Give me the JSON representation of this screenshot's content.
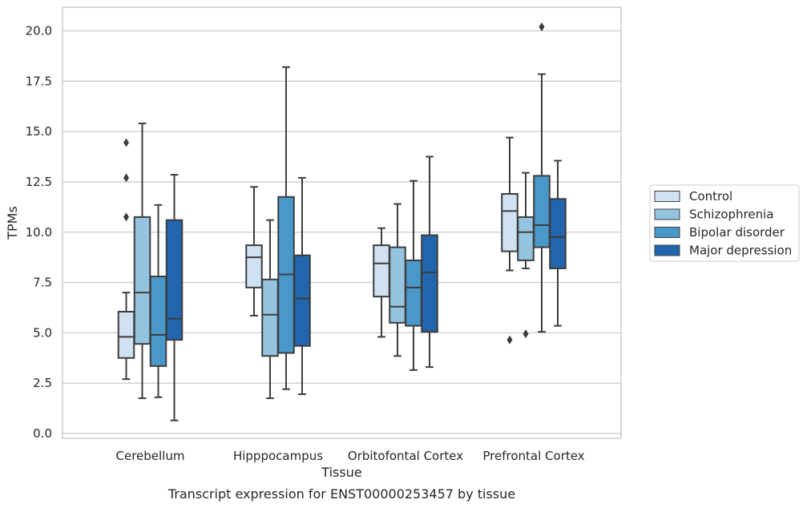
{
  "colors": {
    "background": "#ffffff",
    "grid": "#cccccc",
    "frame": "#cccccc",
    "box_edge": "#3d3d3d"
  },
  "chart_data": {
    "type": "box",
    "title": "",
    "caption": "Transcript expression for ENST00000253457 by tissue",
    "xlabel": "Tissue",
    "ylabel": "TPMs",
    "ylim": [
      -0.4,
      21.3
    ],
    "yticks": [
      "0.0",
      "2.5",
      "5.0",
      "7.5",
      "10.0",
      "12.5",
      "15.0",
      "17.5",
      "20.0"
    ],
    "grid": "horizontal",
    "legend_position": "right",
    "categories": [
      "Cerebellum",
      "Hipppocampus",
      "Orbitofontal Cortex",
      "Prefrontal Cortex"
    ],
    "series": [
      {
        "name": "Control",
        "color": "#d0e1f2",
        "boxes": [
          {
            "whisker_low": 2.7,
            "q1": 3.75,
            "median": 4.8,
            "q3": 6.05,
            "whisker_high": 7.0,
            "outliers": [
              10.75,
              12.7,
              14.45
            ]
          },
          {
            "whisker_low": 5.85,
            "q1": 7.25,
            "median": 8.75,
            "q3": 9.35,
            "whisker_high": 12.25,
            "outliers": []
          },
          {
            "whisker_low": 4.8,
            "q1": 6.8,
            "median": 8.45,
            "q3": 9.35,
            "whisker_high": 10.2,
            "outliers": []
          },
          {
            "whisker_low": 8.1,
            "q1": 9.05,
            "median": 11.05,
            "q3": 11.9,
            "whisker_high": 14.7,
            "outliers": [
              4.65
            ]
          }
        ]
      },
      {
        "name": "Schizophrenia",
        "color": "#94c4df",
        "boxes": [
          {
            "whisker_low": 1.75,
            "q1": 4.45,
            "median": 7.0,
            "q3": 10.75,
            "whisker_high": 15.4,
            "outliers": []
          },
          {
            "whisker_low": 1.75,
            "q1": 3.85,
            "median": 5.9,
            "q3": 7.65,
            "whisker_high": 10.6,
            "outliers": []
          },
          {
            "whisker_low": 3.85,
            "q1": 5.5,
            "median": 6.3,
            "q3": 9.25,
            "whisker_high": 11.4,
            "outliers": []
          },
          {
            "whisker_low": 8.2,
            "q1": 8.6,
            "median": 10.0,
            "q3": 10.75,
            "whisker_high": 12.95,
            "outliers": [
              4.95
            ]
          }
        ]
      },
      {
        "name": "Bipolar disorder",
        "color": "#4a98c9",
        "boxes": [
          {
            "whisker_low": 1.8,
            "q1": 3.35,
            "median": 4.9,
            "q3": 7.8,
            "whisker_high": 11.35,
            "outliers": []
          },
          {
            "whisker_low": 2.2,
            "q1": 4.0,
            "median": 7.9,
            "q3": 11.75,
            "whisker_high": 18.2,
            "outliers": []
          },
          {
            "whisker_low": 3.15,
            "q1": 5.35,
            "median": 7.25,
            "q3": 8.6,
            "whisker_high": 12.55,
            "outliers": []
          },
          {
            "whisker_low": 5.05,
            "q1": 9.25,
            "median": 10.35,
            "q3": 12.8,
            "whisker_high": 17.85,
            "outliers": [
              20.2
            ]
          }
        ]
      },
      {
        "name": "Major depression",
        "color": "#2166ac",
        "boxes": [
          {
            "whisker_low": 0.65,
            "q1": 4.65,
            "median": 5.7,
            "q3": 10.6,
            "whisker_high": 12.85,
            "outliers": []
          },
          {
            "whisker_low": 1.95,
            "q1": 4.35,
            "median": 6.7,
            "q3": 8.85,
            "whisker_high": 12.7,
            "outliers": []
          },
          {
            "whisker_low": 3.3,
            "q1": 5.05,
            "median": 8.0,
            "q3": 9.85,
            "whisker_high": 13.75,
            "outliers": []
          },
          {
            "whisker_low": 5.35,
            "q1": 8.2,
            "median": 9.75,
            "q3": 11.65,
            "whisker_high": 13.55,
            "outliers": []
          }
        ]
      }
    ]
  }
}
